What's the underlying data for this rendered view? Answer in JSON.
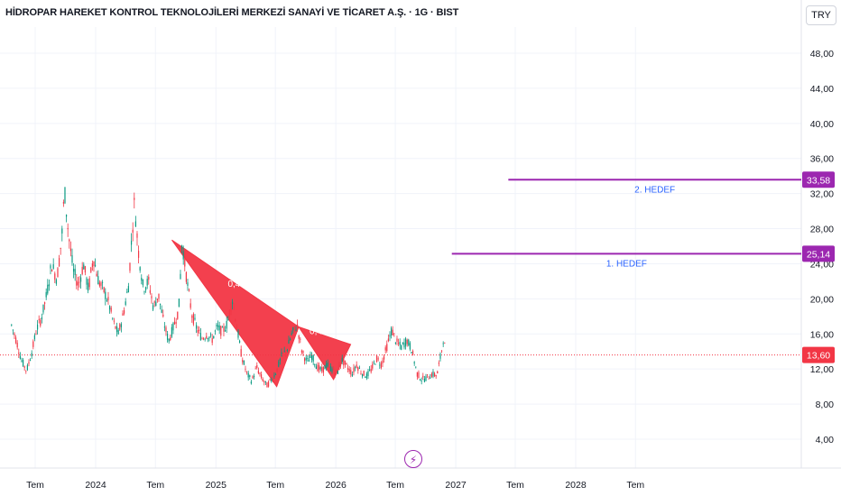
{
  "chart_title": "HİDROPAR HAREKET KONTROL TEKNOLOJİLERİ MERKEZİ SANAYİ VE TİCARET A.Ş. · 1G · BIST",
  "currency_button": "TRY",
  "chart_data": {
    "type": "candlestick",
    "y_ticks": [
      "48,00",
      "44,00",
      "40,00",
      "36,00",
      "32,00",
      "28,00",
      "24,00",
      "20,00",
      "16,00",
      "12,00",
      "8,00",
      "4,00"
    ],
    "y_tick_values": [
      48,
      44,
      40,
      36,
      32,
      28,
      24,
      20,
      16,
      12,
      8,
      4
    ],
    "x_ticks": [
      "Tem",
      "2024",
      "Tem",
      "2025",
      "Tem",
      "2026",
      "Tem",
      "2027",
      "Tem",
      "2028",
      "Tem"
    ],
    "x_tick_dates": [
      "2023-07",
      "2024-01",
      "2024-07",
      "2025-01",
      "2025-07",
      "2026-01",
      "2026-07",
      "2027-01",
      "2027-07",
      "2028-01",
      "2028-07"
    ],
    "ylim": [
      2,
      51
    ],
    "last_price": "13,60",
    "last_price_value": 13.6,
    "price_path": [
      [
        "2023-04-20",
        17.0
      ],
      [
        "2023-05-05",
        15.2
      ],
      [
        "2023-05-20",
        13.0
      ],
      [
        "2023-06-05",
        11.8
      ],
      [
        "2023-06-20",
        13.8
      ],
      [
        "2023-07-05",
        16.5
      ],
      [
        "2023-07-20",
        17.8
      ],
      [
        "2023-08-05",
        20.5
      ],
      [
        "2023-08-20",
        24.0
      ],
      [
        "2023-09-05",
        22.2
      ],
      [
        "2023-09-20",
        27.0
      ],
      [
        "2023-09-28",
        32.5
      ],
      [
        "2023-10-10",
        27.5
      ],
      [
        "2023-10-25",
        23.2
      ],
      [
        "2023-11-10",
        21.5
      ],
      [
        "2023-11-25",
        24.0
      ],
      [
        "2023-12-10",
        21.0
      ],
      [
        "2023-12-25",
        24.8
      ],
      [
        "2024-01-10",
        22.0
      ],
      [
        "2024-01-25",
        21.0
      ],
      [
        "2024-02-10",
        19.5
      ],
      [
        "2024-02-25",
        17.2
      ],
      [
        "2024-03-10",
        16.0
      ],
      [
        "2024-03-25",
        18.2
      ],
      [
        "2024-04-10",
        21.5
      ],
      [
        "2024-04-20",
        27.0
      ],
      [
        "2024-04-28",
        31.0
      ],
      [
        "2024-05-10",
        25.5
      ],
      [
        "2024-05-25",
        21.2
      ],
      [
        "2024-06-10",
        22.0
      ],
      [
        "2024-06-25",
        19.0
      ],
      [
        "2024-07-10",
        20.5
      ],
      [
        "2024-07-25",
        17.5
      ],
      [
        "2024-08-10",
        15.2
      ],
      [
        "2024-08-25",
        16.8
      ],
      [
        "2024-09-10",
        18.8
      ],
      [
        "2024-09-20",
        26.5
      ],
      [
        "2024-10-05",
        22.0
      ],
      [
        "2024-10-20",
        18.2
      ],
      [
        "2024-11-05",
        16.5
      ],
      [
        "2024-11-20",
        15.5
      ],
      [
        "2024-12-05",
        16.0
      ],
      [
        "2024-12-20",
        15.3
      ],
      [
        "2025-01-05",
        16.8
      ],
      [
        "2025-01-20",
        16.2
      ],
      [
        "2025-02-05",
        17.2
      ],
      [
        "2025-02-20",
        20.0
      ],
      [
        "2025-03-05",
        17.0
      ],
      [
        "2025-03-20",
        13.5
      ],
      [
        "2025-04-05",
        11.5
      ],
      [
        "2025-04-20",
        10.6
      ],
      [
        "2025-05-05",
        12.2
      ],
      [
        "2025-05-20",
        11.0
      ],
      [
        "2025-06-05",
        10.1
      ],
      [
        "2025-06-20",
        10.8
      ],
      [
        "2025-07-05",
        11.8
      ],
      [
        "2025-07-20",
        13.5
      ],
      [
        "2025-08-05",
        14.2
      ],
      [
        "2025-08-20",
        16.0
      ],
      [
        "2025-09-05",
        17.0
      ],
      [
        "2025-09-20",
        14.0
      ],
      [
        "2025-10-05",
        12.8
      ],
      [
        "2025-10-20",
        13.5
      ],
      [
        "2025-11-05",
        12.2
      ],
      [
        "2025-11-20",
        11.8
      ],
      [
        "2025-12-05",
        12.5
      ],
      [
        "2025-12-20",
        12.0
      ],
      [
        "2026-01-05",
        11.5
      ],
      [
        "2026-01-20",
        13.0
      ],
      [
        "2026-02-05",
        12.2
      ],
      [
        "2026-02-20",
        11.5
      ],
      [
        "2026-03-05",
        12.5
      ],
      [
        "2026-03-20",
        11.6
      ],
      [
        "2026-04-05",
        11.2
      ],
      [
        "2026-04-20",
        12.0
      ],
      [
        "2026-05-05",
        13.2
      ],
      [
        "2026-05-20",
        12.5
      ],
      [
        "2026-06-05",
        14.5
      ],
      [
        "2026-06-20",
        16.5
      ],
      [
        "2026-07-05",
        15.0
      ],
      [
        "2026-07-20",
        14.5
      ],
      [
        "2026-08-05",
        15.3
      ],
      [
        "2026-08-20",
        14.2
      ],
      [
        "2026-09-05",
        11.5
      ],
      [
        "2026-09-20",
        10.8
      ],
      [
        "2026-10-05",
        11.0
      ],
      [
        "2026-10-20",
        11.4
      ],
      [
        "2026-11-05",
        11.3
      ],
      [
        "2026-11-20",
        14.3
      ],
      [
        "2026-11-25",
        15.8
      ],
      [
        "2026-12-01",
        13.6
      ]
    ],
    "pattern_points": [
      [
        "2024-08-20",
        26.7
      ],
      [
        "2025-07-05",
        10.0
      ],
      [
        "2025-09-10",
        16.8
      ],
      [
        "2025-12-25",
        10.8
      ],
      [
        "2026-02-15",
        14.8
      ]
    ],
    "pattern_labels": [
      "0,4",
      "0,",
      "0,4"
    ],
    "pattern_color": "#f23645",
    "targets": [
      {
        "label": "1. HEDEF",
        "value": 25.14,
        "value_text": "25,14",
        "start": "2026-12-20"
      },
      {
        "label": "2. HEDEF",
        "value": 33.58,
        "value_text": "33,58",
        "start": "2027-06-10"
      }
    ],
    "target_color": "#9c27b0",
    "target_text_color": "#2962ff",
    "last_price_color": "#f23645",
    "up_color": "#089981",
    "down_color": "#f23645",
    "grid": true
  },
  "logo_glyph": "⚡"
}
